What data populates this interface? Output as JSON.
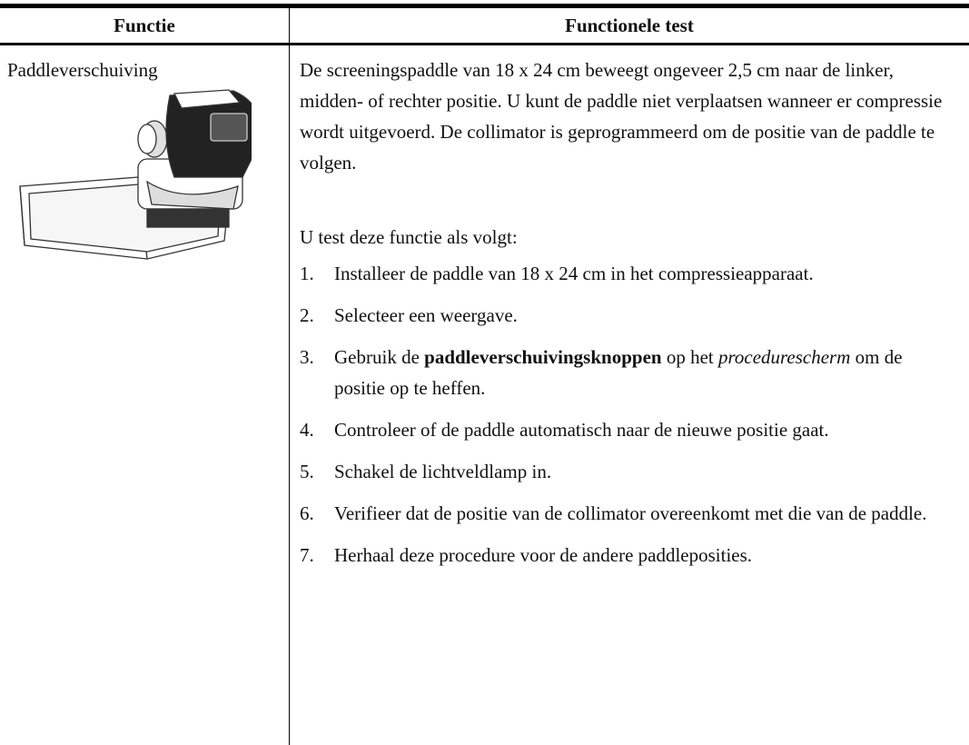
{
  "table": {
    "headers": [
      "Functie",
      "Functionele test"
    ],
    "function": "Paddleverschuiving",
    "description": "De screeningspaddle van 18 x 24 cm beweegt ongeveer 2,5 cm naar de linker, midden- of rechter positie. U kunt de paddle niet verplaatsen wanneer er compressie wordt uitgevoerd. De collimator is geprogrammeerd om de positie van de paddle te volgen.",
    "intro": "U test deze functie als volgt:",
    "steps": [
      {
        "number": "1.",
        "parts": [
          {
            "text": "Installeer de paddle van 18 x 24 cm in het compressieapparaat."
          }
        ]
      },
      {
        "number": "2.",
        "parts": [
          {
            "text": "Selecteer een weergave."
          }
        ]
      },
      {
        "number": "3.",
        "parts": [
          {
            "text": "Gebruik de "
          },
          {
            "text": "paddleverschuivingsknoppen",
            "style": "bold"
          },
          {
            "text": " op het "
          },
          {
            "text": "procedurescherm",
            "style": "italic"
          },
          {
            "text": " om de positie op te heffen."
          }
        ]
      },
      {
        "number": "4.",
        "parts": [
          {
            "text": "Controleer of de paddle automatisch naar de nieuwe positie gaat."
          }
        ]
      },
      {
        "number": "5.",
        "parts": [
          {
            "text": "Schakel de lichtveldlamp in."
          }
        ]
      },
      {
        "number": "6.",
        "parts": [
          {
            "text": "Verifieer dat de positie van de collimator overeenkomt met die van de paddle."
          }
        ]
      },
      {
        "number": "7.",
        "parts": [
          {
            "text": "Herhaal deze procedure voor de andere paddleposities."
          }
        ]
      }
    ]
  }
}
